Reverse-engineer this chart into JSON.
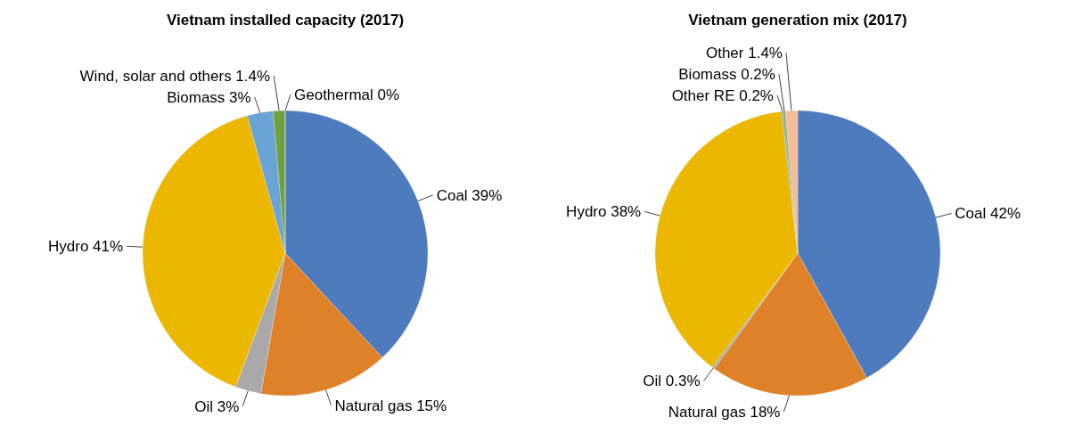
{
  "chart_data": [
    {
      "type": "pie",
      "title": "Vietnam installed capacity (2017)",
      "categories": [
        "Coal",
        "Natural gas",
        "Oil",
        "Hydro",
        "Biomass",
        "Wind, solar and others",
        "Geothermal"
      ],
      "values": [
        39,
        15,
        3,
        41,
        3,
        1.4,
        0
      ],
      "value_labels": [
        "39%",
        "15%",
        "3%",
        "41%",
        "3%",
        "1.4%",
        "0%"
      ],
      "colors": [
        "#4e7bbd",
        "#df8129",
        "#a9a9a9",
        "#ebb700",
        "#6aa3d5",
        "#70a141",
        "#2f5597"
      ]
    },
    {
      "type": "pie",
      "title": "Vietnam generation mix (2017)",
      "categories": [
        "Coal",
        "Natural gas",
        "Oil",
        "Hydro",
        "Other RE",
        "Biomass",
        "Other"
      ],
      "values": [
        42,
        18,
        0.3,
        38,
        0.2,
        0.2,
        1.4
      ],
      "value_labels": [
        "42%",
        "18%",
        "0.3%",
        "38%",
        "0.2%",
        "0.2%",
        "1.4%"
      ],
      "colors": [
        "#4e7bbd",
        "#df8129",
        "#a9a9a9",
        "#ebb700",
        "#6aa3d5",
        "#70a141",
        "#f5bc9c"
      ]
    }
  ]
}
